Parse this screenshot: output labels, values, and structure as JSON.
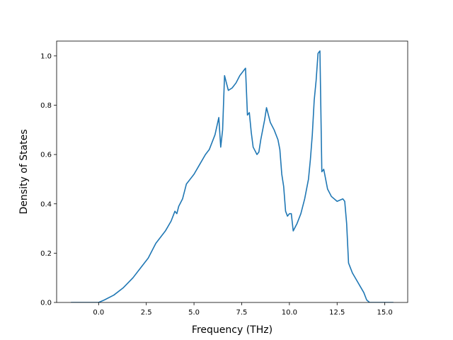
{
  "chart_data": {
    "type": "line",
    "title": "",
    "xlabel": "Frequency (THz)",
    "ylabel": "Density of States",
    "xlim": [
      -2.2,
      16.2
    ],
    "ylim": [
      0.0,
      1.06
    ],
    "xticks": [
      0.0,
      2.5,
      5.0,
      7.5,
      10.0,
      12.5,
      15.0
    ],
    "xtick_labels": [
      "0.0",
      "2.5",
      "5.0",
      "7.5",
      "10.0",
      "12.5",
      "15.0"
    ],
    "yticks": [
      0.0,
      0.2,
      0.4,
      0.6,
      0.8,
      1.0
    ],
    "ytick_labels": [
      "0.0",
      "0.2",
      "0.4",
      "0.6",
      "0.8",
      "1.0"
    ],
    "grid": false,
    "legend": "none",
    "color": "#1f77b4",
    "series": [
      {
        "x": [
          -1.45,
          0.0,
          0.3,
          0.8,
          1.3,
          1.8,
          2.2,
          2.6,
          3.0,
          3.2,
          3.5,
          3.8,
          4.0,
          4.1,
          4.2,
          4.4,
          4.6,
          4.8,
          5.0,
          5.3,
          5.6,
          5.8,
          6.1,
          6.3,
          6.4,
          6.5,
          6.6,
          6.7,
          6.8,
          7.0,
          7.2,
          7.4,
          7.6,
          7.7,
          7.8,
          7.9,
          8.0,
          8.1,
          8.3,
          8.4,
          8.5,
          8.7,
          8.8,
          9.0,
          9.2,
          9.4,
          9.5,
          9.6,
          9.7,
          9.8,
          9.9,
          10.0,
          10.1,
          10.2,
          10.4,
          10.6,
          10.8,
          11.0,
          11.1,
          11.2,
          11.3,
          11.4,
          11.5,
          11.6,
          11.7,
          11.8,
          12.0,
          12.2,
          12.5,
          12.8,
          12.9,
          13.0,
          13.1,
          13.3,
          13.6,
          13.9,
          14.05,
          14.2,
          15.45
        ],
        "y": [
          0.0,
          0.0,
          0.01,
          0.03,
          0.06,
          0.1,
          0.14,
          0.18,
          0.24,
          0.26,
          0.29,
          0.33,
          0.37,
          0.36,
          0.39,
          0.42,
          0.48,
          0.5,
          0.52,
          0.56,
          0.6,
          0.62,
          0.68,
          0.75,
          0.63,
          0.7,
          0.92,
          0.89,
          0.86,
          0.87,
          0.89,
          0.92,
          0.94,
          0.95,
          0.76,
          0.77,
          0.69,
          0.63,
          0.6,
          0.61,
          0.66,
          0.74,
          0.79,
          0.73,
          0.7,
          0.66,
          0.62,
          0.52,
          0.47,
          0.37,
          0.35,
          0.36,
          0.36,
          0.29,
          0.32,
          0.36,
          0.42,
          0.5,
          0.58,
          0.68,
          0.82,
          0.9,
          1.01,
          1.02,
          0.53,
          0.54,
          0.46,
          0.43,
          0.41,
          0.42,
          0.41,
          0.32,
          0.16,
          0.12,
          0.08,
          0.04,
          0.01,
          0.0,
          0.0
        ]
      }
    ]
  }
}
